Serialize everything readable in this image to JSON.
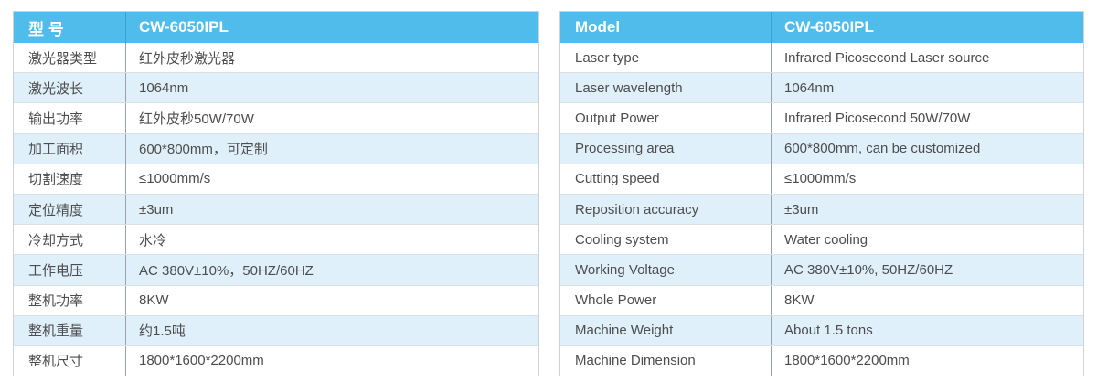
{
  "colors": {
    "header_bg": "#4fbceb",
    "header_divider": "#38a3d3",
    "row_alt_bg": "#dff0fb",
    "row_bg": "#ffffff",
    "outer_border": "#cdd2d6",
    "column_divider": "#9aa1a7",
    "row_separator": "#dae0e4",
    "header_text": "#ffffff",
    "body_text": "#4d4d4d"
  },
  "tables": [
    {
      "language": "chinese",
      "header": {
        "label": "型 号",
        "value": "CW-6050IPL"
      },
      "rows": [
        {
          "label": "激光器类型",
          "value": "红外皮秒激光器"
        },
        {
          "label": "激光波长",
          "value": "1064nm"
        },
        {
          "label": "输出功率",
          "value": "红外皮秒50W/70W"
        },
        {
          "label": "加工面积",
          "value": "600*800mm，可定制"
        },
        {
          "label": "切割速度",
          "value": "≤1000mm/s"
        },
        {
          "label": "定位精度",
          "value": "±3um"
        },
        {
          "label": "冷却方式",
          "value": "水冷"
        },
        {
          "label": "工作电压",
          "value": "AC 380V±10%，50HZ/60HZ"
        },
        {
          "label": "整机功率",
          "value": "8KW"
        },
        {
          "label": "整机重量",
          "value": "约1.5吨"
        },
        {
          "label": "整机尺寸",
          "value": "1800*1600*2200mm"
        }
      ]
    },
    {
      "language": "english",
      "header": {
        "label": "Model",
        "value": "CW-6050IPL"
      },
      "rows": [
        {
          "label": "Laser type",
          "value": "Infrared Picosecond Laser source"
        },
        {
          "label": "Laser wavelength",
          "value": "1064nm"
        },
        {
          "label": "Output Power",
          "value": "Infrared Picosecond 50W/70W"
        },
        {
          "label": "Processing area",
          "value": "600*800mm, can be customized"
        },
        {
          "label": "Cutting speed",
          "value": "≤1000mm/s"
        },
        {
          "label": "Reposition accuracy",
          "value": "±3um"
        },
        {
          "label": "Cooling system",
          "value": "Water cooling"
        },
        {
          "label": "Working Voltage",
          "value": "AC 380V±10%, 50HZ/60HZ"
        },
        {
          "label": "Whole Power",
          "value": "8KW"
        },
        {
          "label": "Machine Weight",
          "value": "About 1.5 tons"
        },
        {
          "label": "Machine Dimension",
          "value": "1800*1600*2200mm"
        }
      ]
    }
  ]
}
